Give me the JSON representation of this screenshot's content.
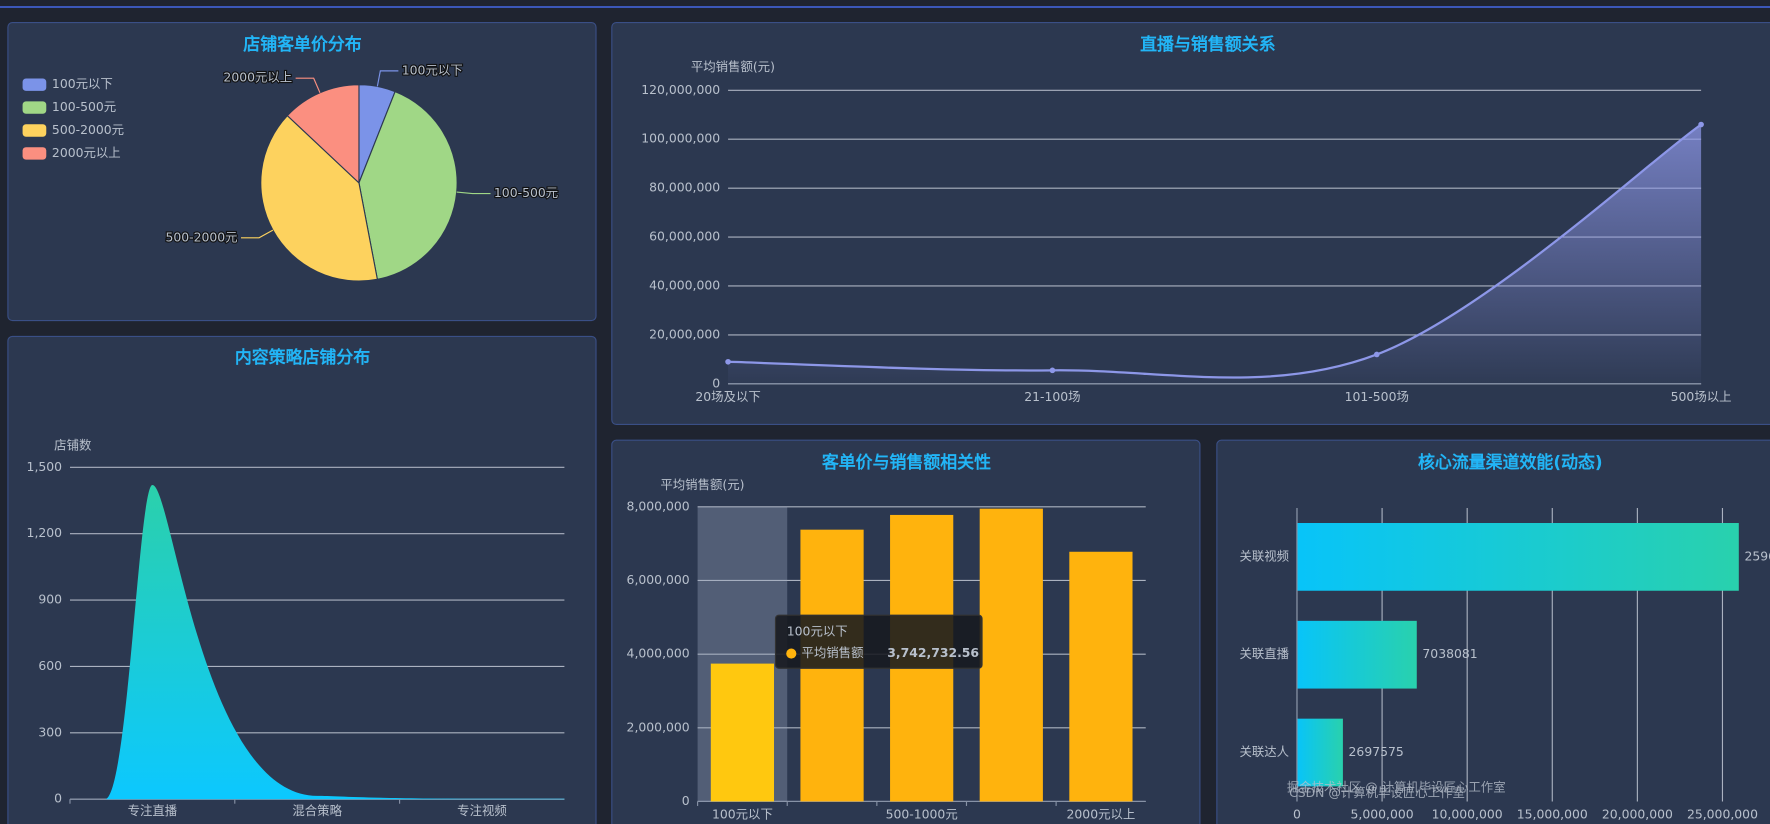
{
  "chart_data": [
    {
      "type": "pie",
      "title": "店铺客单价分布",
      "categories": [
        "100元以下",
        "100-500元",
        "500-2000元",
        "2000元以上"
      ],
      "values": [
        6,
        41,
        40,
        13
      ],
      "colors": [
        "#7b93e8",
        "#a0d786",
        "#fdd25e",
        "#fb8f80"
      ],
      "legend": "top-left"
    },
    {
      "type": "line",
      "title": "直播与销售额关系",
      "y_label": "平均销售额(元)",
      "categories": [
        "20场及以下",
        "21-100场",
        "101-500场",
        "500场以上"
      ],
      "values": [
        9000000,
        5500000,
        12000000,
        106000000
      ],
      "color": "#8d97e8",
      "area": true,
      "ylim": [
        0,
        120000000
      ],
      "yticks": [
        0,
        {
          "value": 20000000,
          "label": "20,000,000"
        },
        {
          "value": 40000000,
          "label": "40,000,000"
        },
        {
          "value": 60000000,
          "label": "60,000,000"
        },
        {
          "value": 80000000,
          "label": "80,000,000"
        },
        {
          "value": 100000000,
          "label": "100,000,000"
        },
        {
          "value": 120000000,
          "label": "120,000,000"
        }
      ],
      "grid": true
    },
    {
      "type": "area",
      "title": "内容策略店铺分布",
      "y_label": "店铺数",
      "categories": [
        "专注直播",
        "混合策略",
        "专注视频"
      ],
      "values": [
        1420,
        15,
        2
      ],
      "colors": [
        "#2bd0ab",
        "#0cc8ff"
      ],
      "ylim": [
        0,
        1500
      ],
      "yticks": [
        0,
        300,
        600,
        900,
        {
          "value": 1200,
          "label": "1,200"
        },
        {
          "value": 1500,
          "label": "1,500"
        }
      ],
      "grid": true
    },
    {
      "type": "bar",
      "title": "客单价与销售额相关性",
      "y_label": "平均销售额(元)",
      "categories": [
        "100元以下",
        null,
        "500-1000元",
        null,
        "2000元以上"
      ],
      "series": [
        {
          "name": "平均销售额",
          "color": "#ffb30d",
          "values": [
            3742732.56,
            7380000,
            7780000,
            7950000,
            6780000
          ],
          "value_labels": [
            "3,742,732.56",
            null,
            null,
            null,
            null
          ]
        }
      ],
      "highlight": 0,
      "ylim": [
        0,
        8000000
      ],
      "yticks": [
        0,
        {
          "value": 2000000,
          "label": "2,000,000"
        },
        {
          "value": 4000000,
          "label": "4,000,000"
        },
        {
          "value": 6000000,
          "label": "6,000,000"
        },
        {
          "value": 8000000,
          "label": "8,000,000"
        }
      ],
      "grid": true
    },
    {
      "type": "bar",
      "horizontal": true,
      "title": "核心流量渠道效能(动态)",
      "categories": [
        "关联视频",
        "关联直播",
        "关联达人"
      ],
      "values": [
        25960000,
        7038081,
        2697575
      ],
      "colors": [
        "#08c4f9",
        "#29d1ad"
      ],
      "xlim": [
        0,
        26000000
      ],
      "xticks": [
        0,
        {
          "value": 5000000,
          "label": "5,000,000"
        },
        {
          "value": 10000000,
          "label": "10,000,000"
        },
        {
          "value": 15000000,
          "label": "15,000,000"
        },
        {
          "value": 20000000,
          "label": "20,000,000"
        },
        {
          "value": 25000000,
          "label": "25,000,000"
        }
      ],
      "grid": true
    }
  ],
  "watermarks": [
    "掘金技术社区 @ 计算机毕设匠心工作室",
    "CSDN @计算机毕设匠心工作室"
  ]
}
